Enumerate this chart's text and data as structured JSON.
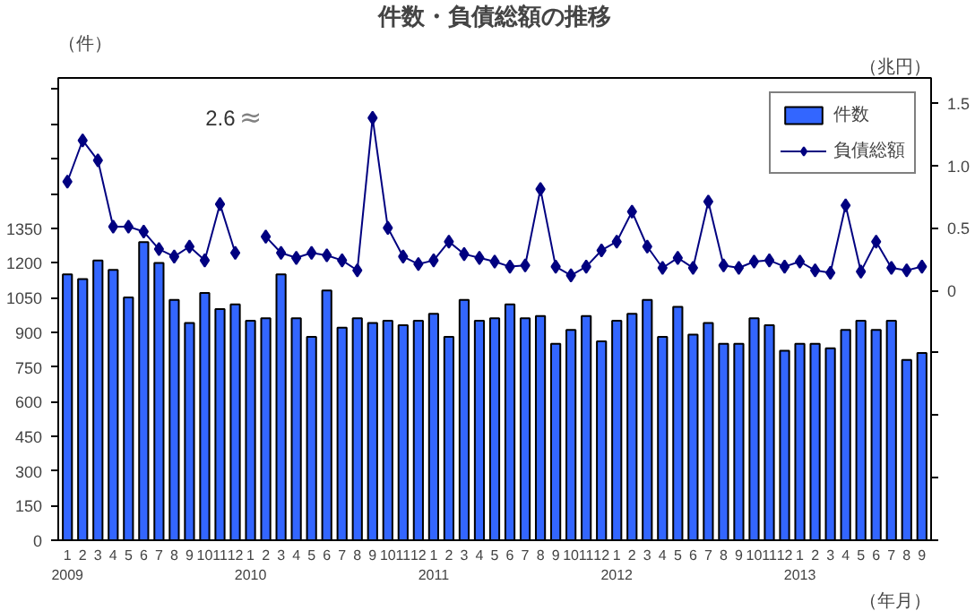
{
  "chart_data": {
    "type": "bar",
    "title": "件数・負債総額の推移",
    "xlabel": "（年月）",
    "ylabel": "（件）",
    "y2label": "（兆円）",
    "categories": [
      "1\n2009",
      "2",
      "3",
      "4",
      "5",
      "6",
      "7",
      "8",
      "9",
      "10",
      "11",
      "12",
      "1\n2010",
      "2",
      "3",
      "4",
      "5",
      "6",
      "7",
      "8",
      "9",
      "10",
      "11",
      "12",
      "1\n2011",
      "2",
      "3",
      "4",
      "5",
      "6",
      "7",
      "8",
      "9",
      "10",
      "11",
      "12",
      "1\n2012",
      "2",
      "3",
      "4",
      "5",
      "6",
      "7",
      "8",
      "9",
      "10",
      "11",
      "12",
      "1\n2013",
      "2",
      "3",
      "4",
      "5",
      "6",
      "7",
      "8",
      "9"
    ],
    "series": [
      {
        "name": "件数",
        "color": "#3366ff",
        "values": [
          1150,
          1130,
          1210,
          1170,
          1050,
          1290,
          1200,
          1040,
          940,
          1070,
          1000,
          1020,
          950,
          960,
          1150,
          960,
          880,
          1080,
          920,
          960,
          940,
          950,
          930,
          950,
          980,
          880,
          1040,
          950,
          960,
          1020,
          960,
          970,
          850,
          910,
          970,
          860,
          950,
          980,
          1040,
          880,
          1010,
          890,
          940,
          850,
          850,
          960,
          930,
          820,
          850,
          850,
          830,
          910,
          950,
          910,
          950,
          780,
          810
        ]
      },
      {
        "name": "負債総額",
        "type": "line",
        "axis": "y2",
        "color": "#000080",
        "marker": "diamond",
        "values": [
          0.87,
          1.2,
          1.04,
          0.51,
          0.51,
          0.47,
          0.33,
          0.27,
          0.35,
          0.24,
          0.69,
          0.3,
          null,
          0.43,
          0.3,
          0.26,
          0.3,
          0.28,
          0.24,
          0.16,
          1.38,
          0.5,
          0.27,
          0.21,
          0.24,
          0.39,
          0.29,
          0.26,
          0.23,
          0.19,
          0.2,
          0.81,
          0.19,
          0.12,
          0.19,
          0.32,
          0.39,
          0.63,
          0.35,
          0.18,
          0.26,
          0.18,
          0.71,
          0.2,
          0.18,
          0.23,
          0.24,
          0.19,
          0.23,
          0.16,
          0.14,
          0.68,
          0.15,
          0.39,
          0.18,
          0.16,
          0.19
        ]
      }
    ],
    "annotations": [
      "2.6",
      "≈"
    ],
    "ylim": [
      0,
      2000
    ],
    "yticks": [
      0,
      150,
      300,
      450,
      600,
      750,
      900,
      1050,
      1200,
      1350,
      {
        "value": 1500,
        "label": null
      },
      {
        "value": 1650,
        "label": null
      },
      {
        "value": 1800,
        "label": null
      },
      {
        "value": 1950,
        "label": null
      }
    ],
    "y2lim": [
      -2,
      1.7
    ],
    "y2ticks": [
      {
        "value": -2,
        "label": null
      },
      {
        "value": -1.5,
        "label": null
      },
      {
        "value": -1,
        "label": null
      },
      {
        "value": -0.5,
        "label": null
      },
      0,
      0.5,
      {
        "value": 1,
        "label": "1.0"
      },
      1.5
    ],
    "grid": false,
    "legend": "top right"
  }
}
